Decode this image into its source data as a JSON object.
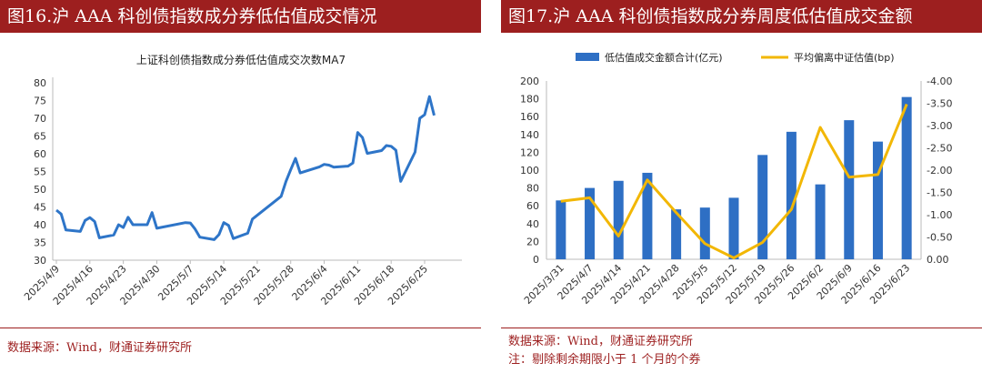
{
  "panels": {
    "left": {
      "heading": "图16.沪 AAA 科创债指数成分券低估值成交情况",
      "source": "数据来源：Wind，财通证券研究所"
    },
    "right": {
      "heading": "图17.沪 AAA 科创债指数成分券周度低估值成交金额",
      "source": "数据来源：Wind，财通证券研究所",
      "note": "注：剔除剩余期限小于 1 个月的个券"
    }
  },
  "colors": {
    "title_bg": "#9d1f1f",
    "line_blue": "#2e75c8",
    "bar_blue": "#2e6fc4",
    "line_gold": "#f2b705"
  },
  "chart_data": [
    {
      "type": "line",
      "title": "上证科创债指数成分券低估值成交次数MA7",
      "x_tick_labels": [
        "2025/4/9",
        "2025/4/16",
        "2025/4/23",
        "2025/4/30",
        "2025/5/7",
        "2025/5/14",
        "2025/5/21",
        "2025/5/28",
        "2025/6/4",
        "2025/6/11",
        "2025/6/18",
        "2025/6/25"
      ],
      "ylim": [
        30,
        80
      ],
      "yticks": [
        30,
        35,
        40,
        45,
        50,
        55,
        60,
        65,
        70,
        75,
        80
      ],
      "grid": false,
      "series": [
        {
          "color": "#2e75c8",
          "points": [
            [
              "2025-04-09",
              44.1
            ],
            [
              "2025-04-10",
              43.0
            ],
            [
              "2025-04-11",
              38.5
            ],
            [
              "2025-04-14",
              38.1
            ],
            [
              "2025-04-15",
              41.2
            ],
            [
              "2025-04-16",
              42.0
            ],
            [
              "2025-04-17",
              40.9
            ],
            [
              "2025-04-18",
              36.3
            ],
            [
              "2025-04-21",
              37.1
            ],
            [
              "2025-04-22",
              40.0
            ],
            [
              "2025-04-23",
              39.2
            ],
            [
              "2025-04-24",
              42.1
            ],
            [
              "2025-04-25",
              40.0
            ],
            [
              "2025-04-28",
              40.0
            ],
            [
              "2025-04-29",
              43.4
            ],
            [
              "2025-04-30",
              39.0
            ],
            [
              "2025-05-06",
              40.6
            ],
            [
              "2025-05-07",
              40.5
            ],
            [
              "2025-05-08",
              38.8
            ],
            [
              "2025-05-09",
              36.5
            ],
            [
              "2025-05-12",
              35.8
            ],
            [
              "2025-05-13",
              37.2
            ],
            [
              "2025-05-14",
              40.6
            ],
            [
              "2025-05-15",
              39.8
            ],
            [
              "2025-05-16",
              36.1
            ],
            [
              "2025-05-19",
              37.6
            ],
            [
              "2025-05-20",
              41.6
            ],
            [
              "2025-05-26",
              48.0
            ],
            [
              "2025-05-27",
              52.2
            ],
            [
              "2025-05-28",
              55.5
            ],
            [
              "2025-05-29",
              58.7
            ],
            [
              "2025-05-30",
              54.6
            ],
            [
              "2025-06-03",
              56.3
            ],
            [
              "2025-06-04",
              57.0
            ],
            [
              "2025-06-05",
              56.8
            ],
            [
              "2025-06-06",
              56.2
            ],
            [
              "2025-06-09",
              56.5
            ],
            [
              "2025-06-10",
              57.4
            ],
            [
              "2025-06-11",
              66.0
            ],
            [
              "2025-06-12",
              64.6
            ],
            [
              "2025-06-13",
              60.1
            ],
            [
              "2025-06-16",
              60.9
            ],
            [
              "2025-06-17",
              62.3
            ],
            [
              "2025-06-18",
              62.1
            ],
            [
              "2025-06-19",
              61.0
            ],
            [
              "2025-06-20",
              52.2
            ],
            [
              "2025-06-23",
              60.5
            ],
            [
              "2025-06-24",
              70.0
            ],
            [
              "2025-06-25",
              71.0
            ],
            [
              "2025-06-26",
              76.1
            ],
            [
              "2025-06-27",
              70.8
            ]
          ]
        }
      ]
    },
    {
      "type": "bar+line",
      "legend_position": "top",
      "categories": [
        "2025/3/31",
        "2025/4/7",
        "2025/4/14",
        "2025/4/21",
        "2025/4/28",
        "2025/5/5",
        "2025/5/12",
        "2025/5/19",
        "2025/5/26",
        "2025/6/2",
        "2025/6/9",
        "2025/6/16",
        "2025/6/23"
      ],
      "y_left": {
        "ylim": [
          0,
          200
        ],
        "ticks": [
          0,
          20,
          40,
          60,
          80,
          100,
          120,
          140,
          160,
          180,
          200
        ]
      },
      "y_right": {
        "ylim": [
          0,
          -4.0
        ],
        "ticks": [
          "0.00",
          "-0.50",
          "-1.00",
          "-1.50",
          "-2.00",
          "-2.50",
          "-3.00",
          "-3.50",
          "-4.00"
        ]
      },
      "grid": false,
      "series": [
        {
          "name": "低估值成交金额合计(亿元)",
          "type": "bar",
          "axis": "left",
          "color": "#2e6fc4",
          "values": [
            66,
            80,
            88,
            97,
            56,
            58,
            69,
            117,
            143,
            84,
            156,
            132,
            182
          ]
        },
        {
          "name": "平均偏离中证估值(bp)",
          "type": "line",
          "axis": "right",
          "color": "#f2b705",
          "values": [
            -1.3,
            -1.38,
            -0.52,
            -1.78,
            -1.05,
            -0.35,
            -0.03,
            -0.38,
            -1.12,
            -2.96,
            -1.84,
            -1.9,
            -3.48
          ]
        }
      ]
    }
  ]
}
